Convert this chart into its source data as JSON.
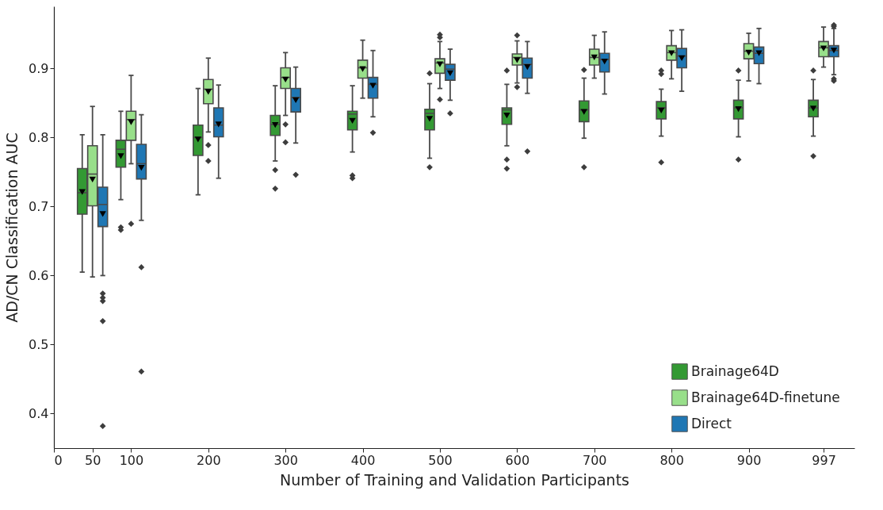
{
  "chart_data": {
    "type": "box",
    "xlabel": "Number of Training and Validation Participants",
    "ylabel": "AD/CN Classification AUC",
    "x": [
      50,
      100,
      200,
      300,
      400,
      500,
      600,
      700,
      800,
      900,
      997
    ],
    "xlim": [
      0,
      1037
    ],
    "xticks": [
      0,
      50,
      100,
      200,
      300,
      400,
      500,
      600,
      700,
      800,
      900,
      997
    ],
    "ylim": [
      0.35,
      0.99
    ],
    "yticks": [
      0.4,
      0.5,
      0.6,
      0.7,
      0.8,
      0.9
    ],
    "legend": "bottom right",
    "series": [
      {
        "name": "Brainage64D",
        "color": "#339933",
        "boxes": [
          {
            "low": 0.605,
            "q1": 0.689,
            "median": 0.72,
            "q3": 0.755,
            "high": 0.804,
            "mean": 0.721
          },
          {
            "low": 0.71,
            "q1": 0.757,
            "median": 0.783,
            "q3": 0.796,
            "high": 0.838,
            "mean": 0.773,
            "outliers": [
              0.67,
              0.666
            ]
          },
          {
            "low": 0.717,
            "q1": 0.774,
            "median": 0.8,
            "q3": 0.818,
            "high": 0.871,
            "mean": 0.797
          },
          {
            "low": 0.766,
            "q1": 0.803,
            "median": 0.819,
            "q3": 0.832,
            "high": 0.875,
            "mean": 0.818,
            "outliers": [
              0.753,
              0.726
            ]
          },
          {
            "low": 0.779,
            "q1": 0.811,
            "median": 0.834,
            "q3": 0.838,
            "high": 0.875,
            "mean": 0.824,
            "outliers": [
              0.745,
              0.741
            ]
          },
          {
            "low": 0.77,
            "q1": 0.811,
            "median": 0.835,
            "q3": 0.841,
            "high": 0.878,
            "mean": 0.827,
            "outliers": [
              0.893,
              0.757
            ]
          },
          {
            "low": 0.788,
            "q1": 0.819,
            "median": 0.84,
            "q3": 0.843,
            "high": 0.877,
            "mean": 0.832,
            "outliers": [
              0.897,
              0.768,
              0.755
            ]
          },
          {
            "low": 0.799,
            "q1": 0.823,
            "median": 0.84,
            "q3": 0.853,
            "high": 0.886,
            "mean": 0.837,
            "outliers": [
              0.898,
              0.757
            ]
          },
          {
            "low": 0.802,
            "q1": 0.827,
            "median": 0.843,
            "q3": 0.852,
            "high": 0.87,
            "mean": 0.839,
            "outliers": [
              0.897,
              0.892,
              0.764
            ]
          },
          {
            "low": 0.801,
            "q1": 0.827,
            "median": 0.843,
            "q3": 0.854,
            "high": 0.883,
            "mean": 0.841,
            "outliers": [
              0.897,
              0.768
            ]
          },
          {
            "low": 0.802,
            "q1": 0.83,
            "median": 0.843,
            "q3": 0.854,
            "high": 0.884,
            "mean": 0.842,
            "outliers": [
              0.897,
              0.773
            ]
          }
        ]
      },
      {
        "name": "Brainage64D-finetune",
        "color": "#98df8a",
        "boxes": [
          {
            "low": 0.598,
            "q1": 0.701,
            "median": 0.747,
            "q3": 0.788,
            "high": 0.845,
            "mean": 0.739
          },
          {
            "low": 0.762,
            "q1": 0.796,
            "median": 0.826,
            "q3": 0.838,
            "high": 0.89,
            "mean": 0.822,
            "outliers": [
              0.675
            ]
          },
          {
            "low": 0.808,
            "q1": 0.849,
            "median": 0.87,
            "q3": 0.884,
            "high": 0.915,
            "mean": 0.866,
            "outliers": [
              0.789,
              0.766
            ]
          },
          {
            "low": 0.832,
            "q1": 0.871,
            "median": 0.887,
            "q3": 0.901,
            "high": 0.923,
            "mean": 0.884,
            "outliers": [
              0.819,
              0.793
            ]
          },
          {
            "low": 0.857,
            "q1": 0.886,
            "median": 0.901,
            "q3": 0.912,
            "high": 0.941,
            "mean": 0.899
          },
          {
            "low": 0.871,
            "q1": 0.893,
            "median": 0.908,
            "q3": 0.914,
            "high": 0.939,
            "mean": 0.906,
            "outliers": [
              0.949,
              0.945,
              0.855
            ]
          },
          {
            "low": 0.879,
            "q1": 0.905,
            "median": 0.916,
            "q3": 0.921,
            "high": 0.94,
            "mean": 0.912,
            "outliers": [
              0.948,
              0.873
            ]
          },
          {
            "low": 0.886,
            "q1": 0.905,
            "median": 0.916,
            "q3": 0.928,
            "high": 0.948,
            "mean": 0.916
          },
          {
            "low": 0.885,
            "q1": 0.912,
            "median": 0.923,
            "q3": 0.933,
            "high": 0.955,
            "mean": 0.922
          },
          {
            "low": 0.882,
            "q1": 0.914,
            "median": 0.925,
            "q3": 0.936,
            "high": 0.951,
            "mean": 0.923
          },
          {
            "low": 0.902,
            "q1": 0.917,
            "median": 0.93,
            "q3": 0.939,
            "high": 0.96,
            "mean": 0.929
          }
        ]
      },
      {
        "name": "Direct",
        "color": "#1f77b4",
        "boxes": [
          {
            "low": 0.6,
            "q1": 0.671,
            "median": 0.703,
            "q3": 0.728,
            "high": 0.804,
            "mean": 0.689,
            "outliers": [
              0.574,
              0.568,
              0.563,
              0.534,
              0.382
            ]
          },
          {
            "low": 0.68,
            "q1": 0.74,
            "median": 0.762,
            "q3": 0.79,
            "high": 0.833,
            "mean": 0.756,
            "outliers": [
              0.612,
              0.461
            ]
          },
          {
            "low": 0.741,
            "q1": 0.801,
            "median": 0.818,
            "q3": 0.843,
            "high": 0.876,
            "mean": 0.819
          },
          {
            "low": 0.792,
            "q1": 0.837,
            "median": 0.858,
            "q3": 0.871,
            "high": 0.902,
            "mean": 0.854,
            "outliers": [
              0.746
            ]
          },
          {
            "low": 0.83,
            "q1": 0.857,
            "median": 0.877,
            "q3": 0.887,
            "high": 0.926,
            "mean": 0.875,
            "outliers": [
              0.807
            ]
          },
          {
            "low": 0.854,
            "q1": 0.883,
            "median": 0.899,
            "q3": 0.906,
            "high": 0.928,
            "mean": 0.893,
            "outliers": [
              0.835
            ]
          },
          {
            "low": 0.864,
            "q1": 0.886,
            "median": 0.906,
            "q3": 0.915,
            "high": 0.939,
            "mean": 0.902,
            "outliers": [
              0.78
            ]
          },
          {
            "low": 0.863,
            "q1": 0.895,
            "median": 0.913,
            "q3": 0.922,
            "high": 0.953,
            "mean": 0.91
          },
          {
            "low": 0.867,
            "q1": 0.901,
            "median": 0.918,
            "q3": 0.929,
            "high": 0.956,
            "mean": 0.915
          },
          {
            "low": 0.878,
            "q1": 0.907,
            "median": 0.922,
            "q3": 0.931,
            "high": 0.958,
            "mean": 0.922
          },
          {
            "low": 0.891,
            "q1": 0.917,
            "median": 0.926,
            "q3": 0.933,
            "high": 0.958,
            "mean": 0.926,
            "outliers": [
              0.963,
              0.961,
              0.885,
              0.882
            ]
          }
        ]
      }
    ]
  }
}
